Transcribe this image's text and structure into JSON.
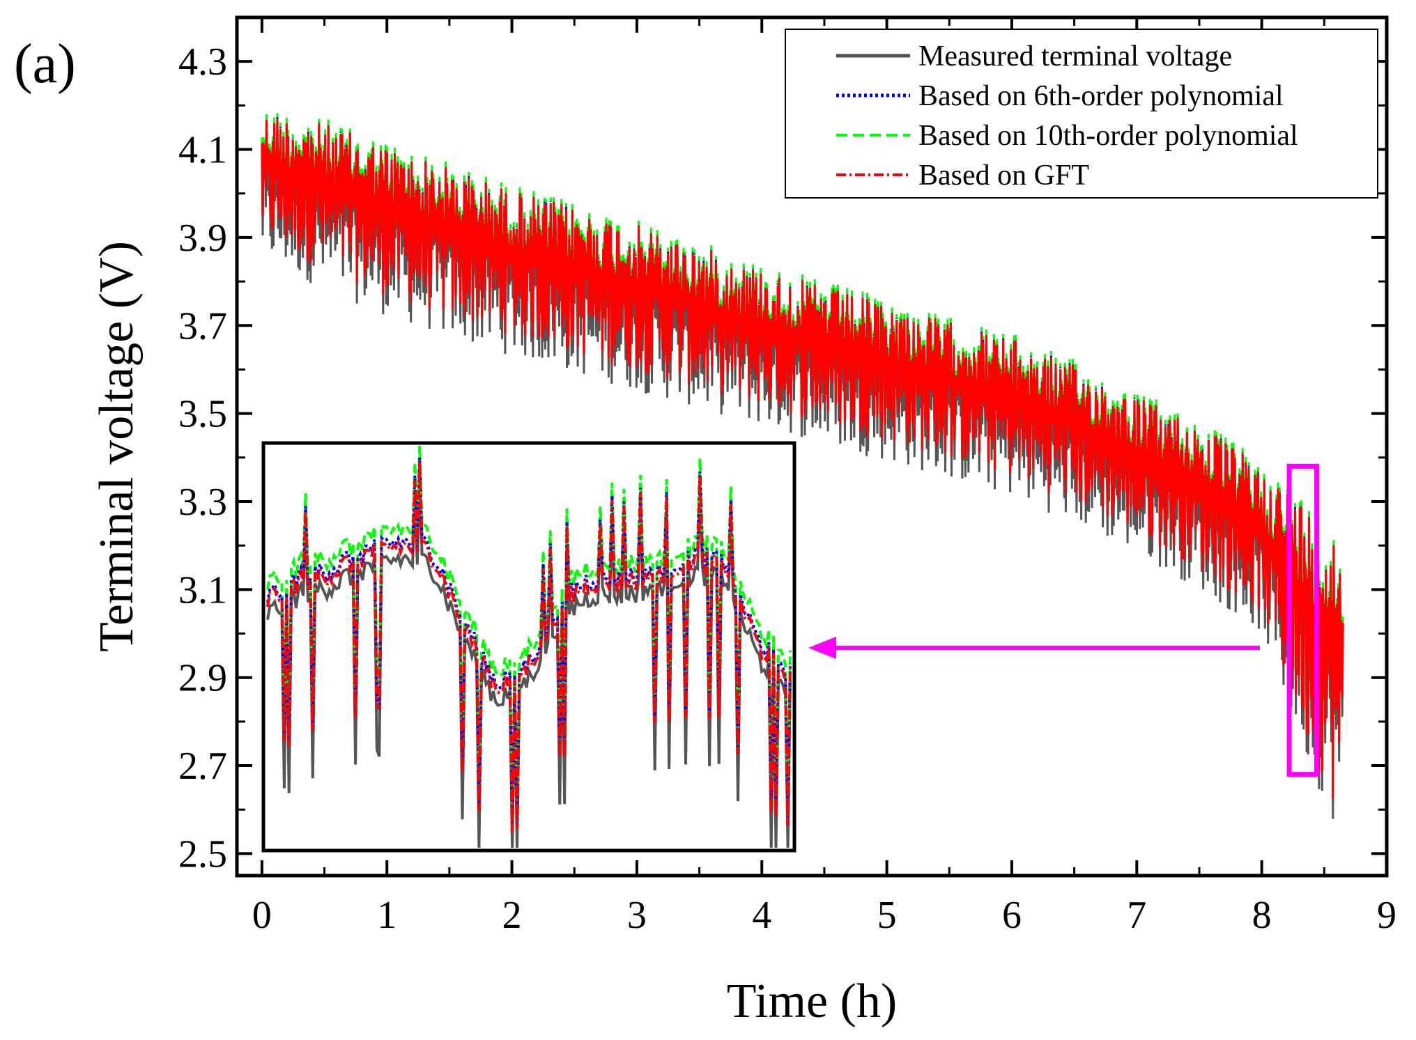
{
  "panel_label": "(a)",
  "colors": {
    "measured": "#555555",
    "poly6": "#0000ff",
    "poly10": "#00ff00",
    "gft": "#ff0000",
    "highlight": "#ff00ff",
    "axis": "#000000"
  },
  "chart_data": {
    "type": "line",
    "title": "",
    "xlabel": "Time (h)",
    "ylabel": "Terminal voltage (V)",
    "xlim": [
      -0.2,
      9.0
    ],
    "ylim": [
      2.45,
      4.4
    ],
    "xticks": [
      0,
      1,
      2,
      3,
      4,
      5,
      6,
      7,
      8,
      9
    ],
    "yticks": [
      2.5,
      2.7,
      2.9,
      3.1,
      3.3,
      3.5,
      3.7,
      3.9,
      4.1,
      4.3
    ],
    "xtick_labels": [
      "0",
      "1",
      "2",
      "3",
      "4",
      "5",
      "6",
      "7",
      "8",
      "9"
    ],
    "ytick_labels": [
      "2.5",
      "2.7",
      "2.9",
      "3.1",
      "3.3",
      "3.5",
      "3.7",
      "3.9",
      "4.1",
      "4.3"
    ],
    "legend_position": "top-right",
    "series": [
      {
        "name": "Measured terminal voltage",
        "style": "solid",
        "color": "#555555"
      },
      {
        "name": "Based on 6th-order polynomial",
        "style": "dotted",
        "color": "#0000ff"
      },
      {
        "name": "Based on 10th-order polynomial",
        "style": "dashed",
        "color": "#00ff00"
      },
      {
        "name": "Based on GFT",
        "style": "dash-dot",
        "color": "#ff0000"
      }
    ],
    "envelope": {
      "t": [
        0,
        0.5,
        1,
        1.5,
        2,
        2.5,
        3,
        3.5,
        4,
        4.5,
        5,
        5.5,
        6,
        6.5,
        7,
        7.5,
        8,
        8.3,
        8.65
      ],
      "upper": [
        4.18,
        4.15,
        4.1,
        4.05,
        4.0,
        3.96,
        3.92,
        3.87,
        3.82,
        3.78,
        3.74,
        3.7,
        3.66,
        3.6,
        3.53,
        3.47,
        3.37,
        3.3,
        3.2
      ],
      "lower": [
        3.85,
        3.78,
        3.72,
        3.67,
        3.63,
        3.59,
        3.55,
        3.51,
        3.47,
        3.43,
        3.39,
        3.35,
        3.31,
        3.25,
        3.18,
        3.1,
        3.0,
        2.75,
        2.52
      ]
    },
    "zoom_region": {
      "t_start": 8.22,
      "t_end": 8.44,
      "v_min": 2.68,
      "v_max": 3.38
    },
    "inset": {
      "description_series": "zoomed view of highlighted region",
      "measured_baseline": [
        3.05,
        3.1,
        3.12,
        3.16,
        3.18,
        3.17,
        3.0,
        2.85,
        2.9,
        3.05,
        3.1,
        3.1,
        3.12,
        3.15,
        3.14,
        2.95,
        2.88
      ],
      "model_offset": 0.04
    }
  }
}
